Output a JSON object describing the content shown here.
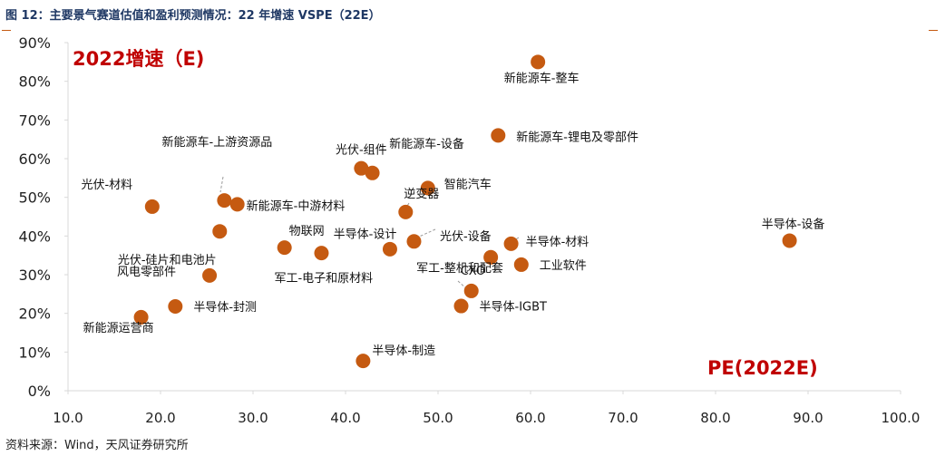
{
  "figure": {
    "title": "图 12：主要景气赛道估值和盈利预测情况：22 年增速 VSPE（22E）",
    "source": "资料来源：Wind，天风证券研究所"
  },
  "colors": {
    "point": "#c55a11",
    "highlight_text": "#c00000",
    "axis": "#d9d9d9",
    "title": "#1f3864"
  },
  "chart_data": {
    "type": "scatter",
    "title": "",
    "ylabel": "2022增速（E)",
    "xlabel": "PE(2022E)",
    "xlim": [
      10,
      100
    ],
    "ylim": [
      0,
      0.9
    ],
    "x_ticks": [
      "10.0",
      "20.0",
      "30.0",
      "40.0",
      "50.0",
      "60.0",
      "70.0",
      "80.0",
      "90.0",
      "100.0"
    ],
    "y_ticks": [
      "0%",
      "10%",
      "20%",
      "30%",
      "40%",
      "50%",
      "60%",
      "70%",
      "80%",
      "90%"
    ],
    "grid": false,
    "points": [
      {
        "label": "新能源车-整车",
        "x": 60.8,
        "y": 0.85
      },
      {
        "label": "新能源车-锂电及零部件",
        "x": 56.5,
        "y": 0.66
      },
      {
        "label": "光伏-组件",
        "x": 41.7,
        "y": 0.575
      },
      {
        "label": "新能源车-设备",
        "x": 42.9,
        "y": 0.563
      },
      {
        "label": "智能汽车",
        "x": 48.9,
        "y": 0.524
      },
      {
        "label": "新能源车-上游资源品",
        "x": 26.9,
        "y": 0.492
      },
      {
        "label": "新能源车-中游材料",
        "x": 28.3,
        "y": 0.482
      },
      {
        "label": "光伏-材料",
        "x": 19.1,
        "y": 0.476
      },
      {
        "label": "逆变器",
        "x": 46.5,
        "y": 0.462
      },
      {
        "label": "光伏-硅片和电池片",
        "x": 26.4,
        "y": 0.412
      },
      {
        "label": "半导体-设计",
        "x": 47.4,
        "y": 0.386
      },
      {
        "label": "光伏-设备",
        "x": 44.8,
        "y": 0.366
      },
      {
        "label": "物联网",
        "x": 33.4,
        "y": 0.37
      },
      {
        "label": "军工-电子和原材料",
        "x": 37.4,
        "y": 0.356
      },
      {
        "label": "半导体-材料",
        "x": 57.9,
        "y": 0.38
      },
      {
        "label": "半导体-设备",
        "x": 88.0,
        "y": 0.388
      },
      {
        "label": "军工-整机和配套",
        "x": 55.7,
        "y": 0.345
      },
      {
        "label": "工业软件",
        "x": 59.0,
        "y": 0.326
      },
      {
        "label": "风电零部件",
        "x": 25.3,
        "y": 0.298
      },
      {
        "label": "CXO",
        "x": 53.6,
        "y": 0.258
      },
      {
        "label": "半导体-封测",
        "x": 21.6,
        "y": 0.218
      },
      {
        "label": "半导体-IGBT",
        "x": 52.5,
        "y": 0.219
      },
      {
        "label": "新能源运营商",
        "x": 17.9,
        "y": 0.19
      },
      {
        "label": "半导体-制造",
        "x": 41.9,
        "y": 0.077
      }
    ]
  }
}
